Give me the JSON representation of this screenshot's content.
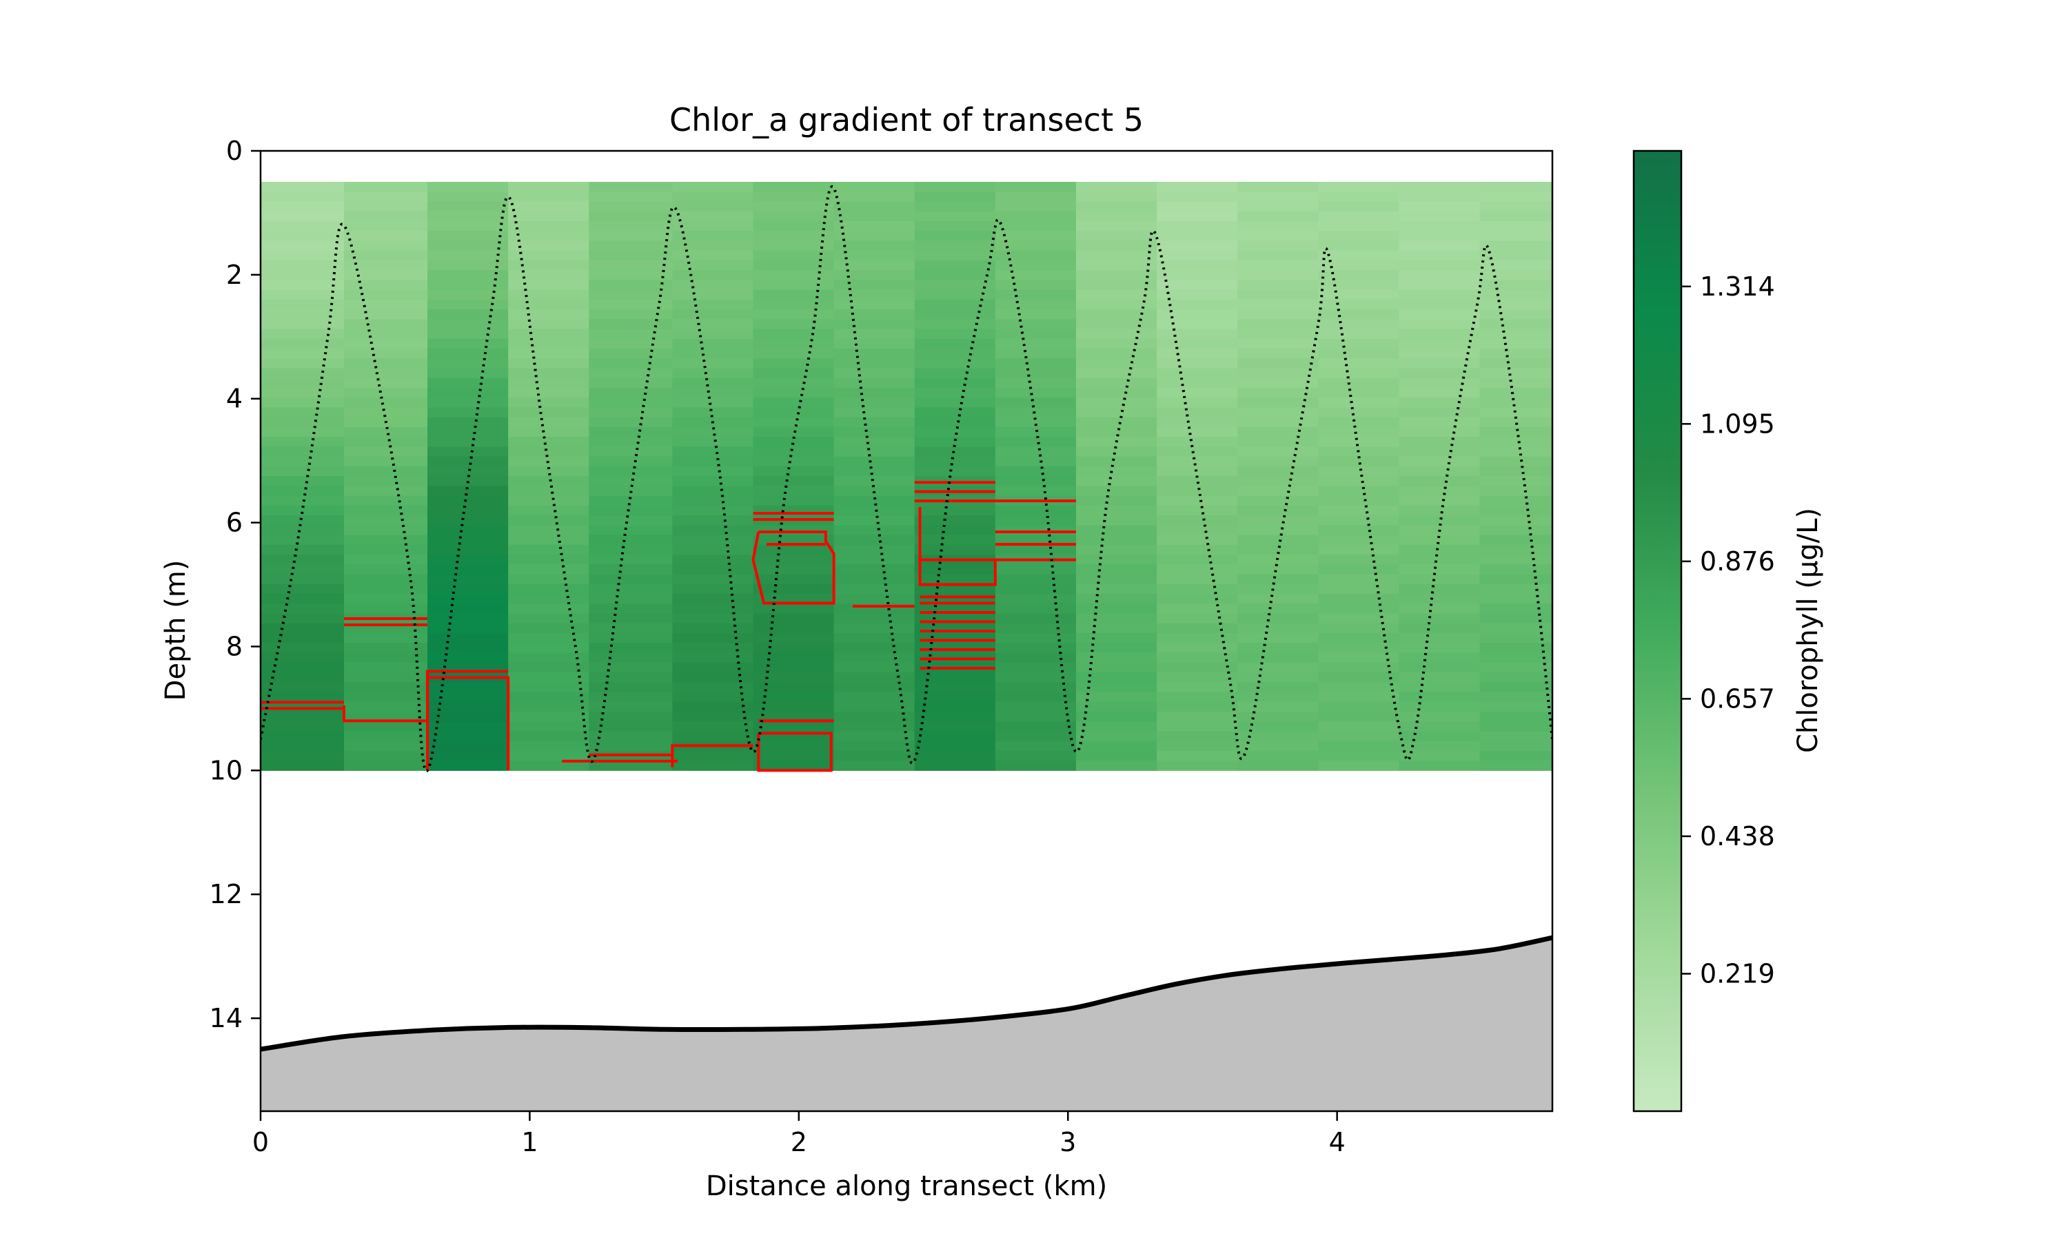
{
  "chart_data": {
    "type": "heatmap",
    "title": "Chlor_a gradient of transect 5",
    "xlabel": "Distance along transect (km)",
    "ylabel": "Depth (m)",
    "xlim": [
      0,
      4.8
    ],
    "ylim": [
      15.5,
      0
    ],
    "x_ticks": [
      0,
      1,
      2,
      3,
      4
    ],
    "x_tick_labels": [
      "0",
      "1",
      "2",
      "3",
      "4"
    ],
    "y_ticks": [
      0,
      2,
      4,
      6,
      8,
      10,
      12,
      14
    ],
    "y_tick_labels": [
      "0",
      "2",
      "4",
      "6",
      "8",
      "10",
      "12",
      "14"
    ],
    "colorbar": {
      "label": "Chlorophyll (µg/L)",
      "range": [
        0.0,
        1.53
      ],
      "ticks": [
        0.219,
        0.438,
        0.657,
        0.876,
        1.095,
        1.314
      ],
      "tick_labels": [
        "0.219",
        "0.438",
        "0.657",
        "0.876",
        "1.095",
        "1.314"
      ],
      "colors": [
        "#c7e9c0",
        "#a1d99b",
        "#74c476",
        "#41ab5d",
        "#238b45",
        "#0b8a4a",
        "#137147"
      ]
    },
    "field": {
      "depth_top": 0.5,
      "depth_bottom": 10,
      "columns": [
        {
          "x0": 0.0,
          "x1": 0.31,
          "top": 0.2,
          "bottom": 1.05
        },
        {
          "x0": 0.31,
          "x1": 0.62,
          "top": 0.3,
          "bottom": 0.85
        },
        {
          "x0": 0.62,
          "x1": 0.92,
          "top": 0.45,
          "bottom": 1.35
        },
        {
          "x0": 0.92,
          "x1": 1.22,
          "top": 0.3,
          "bottom": 0.8
        },
        {
          "x0": 1.22,
          "x1": 1.53,
          "top": 0.45,
          "bottom": 0.9
        },
        {
          "x0": 1.53,
          "x1": 1.83,
          "top": 0.45,
          "bottom": 1.0
        },
        {
          "x0": 1.83,
          "x1": 2.13,
          "top": 0.5,
          "bottom": 1.05
        },
        {
          "x0": 2.13,
          "x1": 2.43,
          "top": 0.5,
          "bottom": 0.9
        },
        {
          "x0": 2.43,
          "x1": 2.73,
          "top": 0.55,
          "bottom": 1.1
        },
        {
          "x0": 2.73,
          "x1": 3.03,
          "top": 0.5,
          "bottom": 0.9
        },
        {
          "x0": 3.03,
          "x1": 3.33,
          "top": 0.3,
          "bottom": 0.7
        },
        {
          "x0": 3.33,
          "x1": 3.63,
          "top": 0.2,
          "bottom": 0.6
        },
        {
          "x0": 3.63,
          "x1": 3.93,
          "top": 0.25,
          "bottom": 0.6
        },
        {
          "x0": 3.93,
          "x1": 4.23,
          "top": 0.25,
          "bottom": 0.6
        },
        {
          "x0": 4.23,
          "x1": 4.53,
          "top": 0.22,
          "bottom": 0.62
        },
        {
          "x0": 4.53,
          "x1": 4.8,
          "top": 0.25,
          "bottom": 0.65
        }
      ]
    },
    "track": {
      "style": "dotted",
      "color": "#000000",
      "x": [
        0.0,
        0.13,
        0.25,
        0.31,
        0.45,
        0.56,
        0.62,
        0.75,
        0.86,
        0.93,
        1.05,
        1.17,
        1.24,
        1.36,
        1.48,
        1.55,
        1.7,
        1.83,
        1.95,
        2.05,
        2.13,
        2.25,
        2.37,
        2.44,
        2.57,
        2.7,
        2.76,
        2.9,
        3.03,
        3.15,
        3.28,
        3.33,
        3.47,
        3.6,
        3.66,
        3.8,
        3.93,
        3.97,
        4.1,
        4.23,
        4.29,
        4.4,
        4.52,
        4.57,
        4.7,
        4.8
      ],
      "depth": [
        9.5,
        6.5,
        3.0,
        1.2,
        4.0,
        7.0,
        10.0,
        6.0,
        2.5,
        0.8,
        4.5,
        8.0,
        9.8,
        6.0,
        2.5,
        1.0,
        5.0,
        9.7,
        5.5,
        3.0,
        0.6,
        4.5,
        8.5,
        9.7,
        5.0,
        2.0,
        1.3,
        5.0,
        9.7,
        5.5,
        2.5,
        1.4,
        5.0,
        8.5,
        9.7,
        6.0,
        2.8,
        1.7,
        5.5,
        9.3,
        9.4,
        5.5,
        2.5,
        1.7,
        5.5,
        9.5
      ]
    },
    "bathymetry": {
      "fill": "#c0c0c0",
      "x": [
        0.0,
        0.3,
        0.6,
        0.9,
        1.2,
        1.5,
        1.8,
        2.1,
        2.4,
        2.7,
        3.0,
        3.2,
        3.4,
        3.6,
        3.8,
        4.0,
        4.2,
        4.4,
        4.6,
        4.8
      ],
      "depth": [
        14.5,
        14.3,
        14.2,
        14.15,
        14.15,
        14.18,
        14.18,
        14.16,
        14.1,
        14.0,
        13.85,
        13.65,
        13.45,
        13.3,
        13.2,
        13.12,
        13.05,
        12.98,
        12.88,
        12.7
      ]
    },
    "contours": {
      "color": "#ff0000",
      "segments": [
        {
          "x": [
            0.0,
            0.31
          ],
          "depth": [
            8.9,
            8.9
          ]
        },
        {
          "x": [
            0.0,
            0.31
          ],
          "depth": [
            9.0,
            9.0
          ]
        },
        {
          "x": [
            0.31,
            0.31,
            0.62,
            0.62,
            0.92
          ],
          "depth": [
            8.95,
            9.2,
            9.2,
            8.4,
            8.4
          ]
        },
        {
          "x": [
            0.31,
            0.62
          ],
          "depth": [
            7.55,
            7.55
          ]
        },
        {
          "x": [
            0.31,
            0.62
          ],
          "depth": [
            7.65,
            7.65
          ]
        },
        {
          "x": [
            0.62,
            0.92,
            0.92,
            0.92
          ],
          "depth": [
            8.5,
            8.5,
            10.0,
            8.5
          ]
        },
        {
          "x": [
            0.62,
            0.62
          ],
          "depth": [
            8.45,
            10.0
          ]
        },
        {
          "x": [
            1.12,
            1.55
          ],
          "depth": [
            9.85,
            9.85
          ]
        },
        {
          "x": [
            1.22,
            1.53
          ],
          "depth": [
            9.75,
            9.75
          ]
        },
        {
          "x": [
            1.53,
            1.53,
            1.83
          ],
          "depth": [
            9.95,
            9.6,
            9.6
          ]
        },
        {
          "x": [
            1.85,
            1.85,
            2.12,
            2.12,
            1.85
          ],
          "depth": [
            9.4,
            10.0,
            10.0,
            9.4,
            9.4
          ]
        },
        {
          "x": [
            1.85,
            2.13
          ],
          "depth": [
            9.2,
            9.2
          ]
        },
        {
          "x": [
            1.83,
            2.13
          ],
          "depth": [
            5.85,
            5.85
          ]
        },
        {
          "x": [
            1.83,
            2.13
          ],
          "depth": [
            5.95,
            5.95
          ]
        },
        {
          "x": [
            1.85,
            2.1,
            2.1,
            2.13,
            2.13,
            1.87,
            1.83,
            1.85
          ],
          "depth": [
            6.15,
            6.15,
            6.3,
            6.5,
            7.3,
            7.3,
            6.6,
            6.15
          ]
        },
        {
          "x": [
            1.88,
            2.1
          ],
          "depth": [
            6.35,
            6.35
          ]
        },
        {
          "x": [
            2.2,
            2.43
          ],
          "depth": [
            7.35,
            7.35
          ]
        },
        {
          "x": [
            2.43,
            2.73
          ],
          "depth": [
            5.35,
            5.35
          ]
        },
        {
          "x": [
            2.43,
            2.73
          ],
          "depth": [
            5.5,
            5.5
          ]
        },
        {
          "x": [
            2.43,
            2.73
          ],
          "depth": [
            5.65,
            5.65
          ]
        },
        {
          "x": [
            2.45,
            2.45,
            2.73,
            2.73,
            2.45
          ],
          "depth": [
            5.75,
            7.0,
            7.0,
            6.6,
            6.6
          ]
        },
        {
          "x": [
            2.45,
            2.73
          ],
          "depth": [
            7.2,
            7.2
          ]
        },
        {
          "x": [
            2.45,
            2.73
          ],
          "depth": [
            7.3,
            7.3
          ]
        },
        {
          "x": [
            2.45,
            2.73
          ],
          "depth": [
            7.45,
            7.45
          ]
        },
        {
          "x": [
            2.45,
            2.73
          ],
          "depth": [
            7.6,
            7.6
          ]
        },
        {
          "x": [
            2.45,
            2.73
          ],
          "depth": [
            7.75,
            7.75
          ]
        },
        {
          "x": [
            2.45,
            2.73
          ],
          "depth": [
            7.9,
            7.9
          ]
        },
        {
          "x": [
            2.45,
            2.73
          ],
          "depth": [
            8.05,
            8.05
          ]
        },
        {
          "x": [
            2.45,
            2.73
          ],
          "depth": [
            8.2,
            8.2
          ]
        },
        {
          "x": [
            2.45,
            2.73
          ],
          "depth": [
            8.35,
            8.35
          ]
        },
        {
          "x": [
            2.73,
            3.03
          ],
          "depth": [
            5.65,
            5.65
          ]
        },
        {
          "x": [
            2.73,
            3.03
          ],
          "depth": [
            6.15,
            6.15
          ]
        },
        {
          "x": [
            2.73,
            3.03
          ],
          "depth": [
            6.35,
            6.35
          ]
        },
        {
          "x": [
            2.73,
            3.03
          ],
          "depth": [
            6.6,
            6.6
          ]
        }
      ]
    }
  }
}
